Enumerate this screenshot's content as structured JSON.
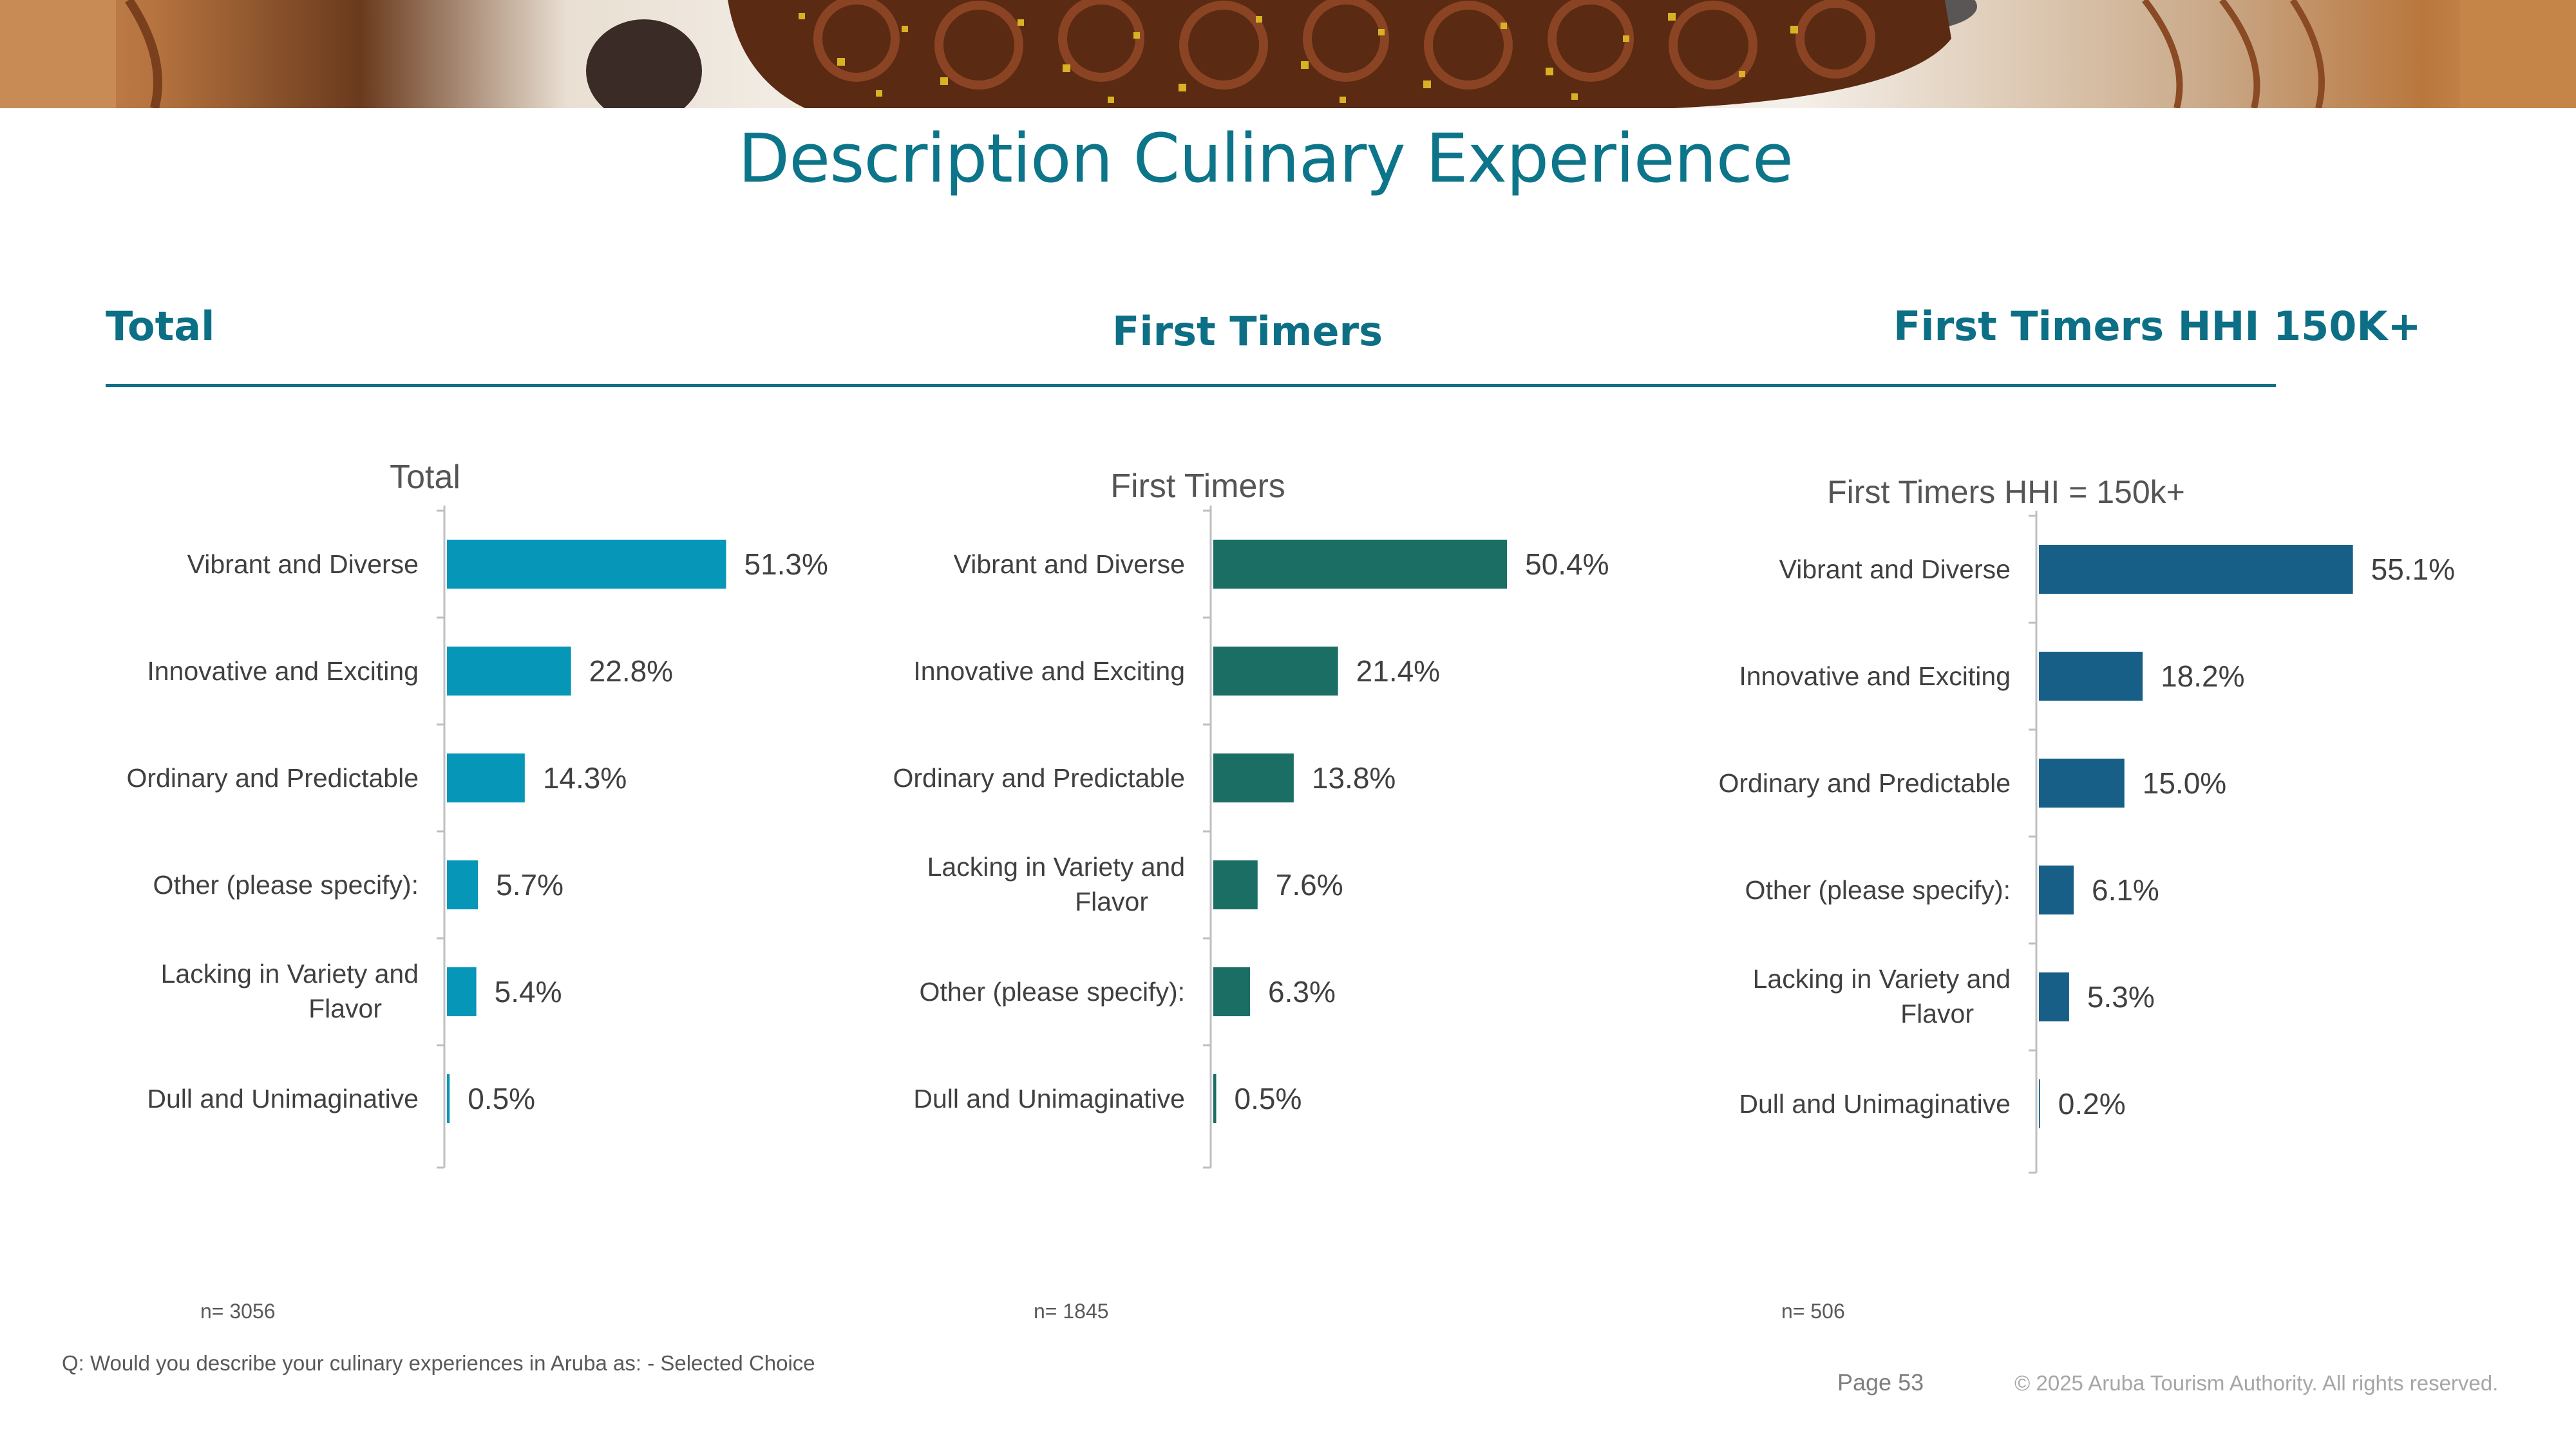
{
  "page": {
    "title": "Description Culinary Experience",
    "sections": [
      "Total",
      "First Timers",
      "First Timers HHI 150K+"
    ],
    "n_labels": [
      "n= 3056",
      "n= 1845",
      "n= 506"
    ],
    "question": "Q: Would you describe your culinary experiences in Aruba as: - Selected Choice",
    "page_number": "Page 53",
    "copyright": "© 2025 Aruba Tourism Authority. All rights reserved."
  },
  "colors": {
    "title": "#0d7589",
    "total": "#0696b7",
    "first_timers": "#1a6e64",
    "hhi": "#175f87"
  },
  "chart_data": [
    {
      "type": "bar",
      "orientation": "horizontal",
      "title": "Total",
      "categories": [
        "Vibrant and Diverse",
        "Innovative and Exciting",
        "Ordinary and Predictable",
        "Other (please specify):",
        "Lacking in Variety and Flavor",
        "Dull and Unimaginative"
      ],
      "values": [
        51.3,
        22.8,
        14.3,
        5.7,
        5.4,
        0.5
      ],
      "value_labels": [
        "51.3%",
        "22.8%",
        "14.3%",
        "5.7%",
        "5.4%",
        "0.5%"
      ],
      "color": "#0696b7"
    },
    {
      "type": "bar",
      "orientation": "horizontal",
      "title": "First Timers",
      "categories": [
        "Vibrant and Diverse",
        "Innovative and Exciting",
        "Ordinary and Predictable",
        "Lacking in Variety and Flavor",
        "Other (please specify):",
        "Dull and Unimaginative"
      ],
      "values": [
        50.4,
        21.4,
        13.8,
        7.6,
        6.3,
        0.5
      ],
      "value_labels": [
        "50.4%",
        "21.4%",
        "13.8%",
        "7.6%",
        "6.3%",
        "0.5%"
      ],
      "color": "#1a6e64"
    },
    {
      "type": "bar",
      "orientation": "horizontal",
      "title": "First Timers HHI = 150k+",
      "categories": [
        "Vibrant and Diverse",
        "Innovative and Exciting",
        "Ordinary and Predictable",
        "Other (please specify):",
        "Lacking in Variety and Flavor",
        "Dull and Unimaginative"
      ],
      "values": [
        55.1,
        18.2,
        15.0,
        6.1,
        5.3,
        0.2
      ],
      "value_labels": [
        "55.1%",
        "18.2%",
        "15.0%",
        "6.1%",
        "5.3%",
        "0.2%"
      ],
      "color": "#175f87"
    }
  ]
}
